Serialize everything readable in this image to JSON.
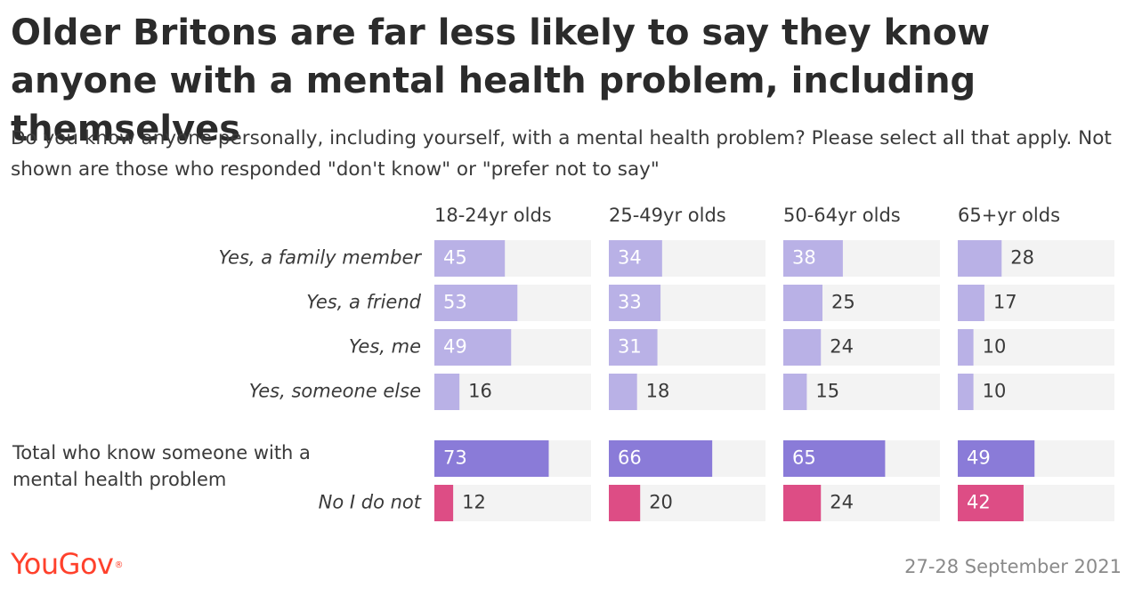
{
  "title": "Older Britons are far less likely to say they know anyone with a mental health problem, including themselves",
  "subtitle": "Do you know anyone personally, including yourself, with a mental health problem? Please select all that apply. Not shown are those who responded \"don't know\" or \"prefer not to say\"",
  "logo": "YouGov",
  "logo_mark": "®",
  "date": "27-28 September 2021",
  "colors": {
    "light_purple": "#b9b1e6",
    "dark_purple": "#8a7bd8",
    "pink": "#dd4d85",
    "track": "#f3f3f3",
    "text": "#3a3a3a"
  },
  "chart_data": {
    "type": "bar",
    "orientation": "horizontal",
    "xlim": [
      0,
      100
    ],
    "categories": [
      "Yes, a family member",
      "Yes, a friend",
      "Yes, me",
      "Yes, someone else",
      "Total who know someone with a mental health problem",
      "No I do not"
    ],
    "category_italic": [
      true,
      true,
      true,
      true,
      false,
      true
    ],
    "category_color": [
      "light_purple",
      "light_purple",
      "light_purple",
      "light_purple",
      "dark_purple",
      "pink"
    ],
    "series": [
      {
        "name": "18-24yr olds",
        "values": [
          45,
          53,
          49,
          16,
          73,
          12
        ]
      },
      {
        "name": "25-49yr olds",
        "values": [
          34,
          33,
          31,
          18,
          66,
          20
        ]
      },
      {
        "name": "50-64yr olds",
        "values": [
          38,
          25,
          24,
          15,
          65,
          24
        ]
      },
      {
        "name": "65+yr olds",
        "values": [
          28,
          17,
          10,
          10,
          49,
          42
        ]
      }
    ]
  }
}
